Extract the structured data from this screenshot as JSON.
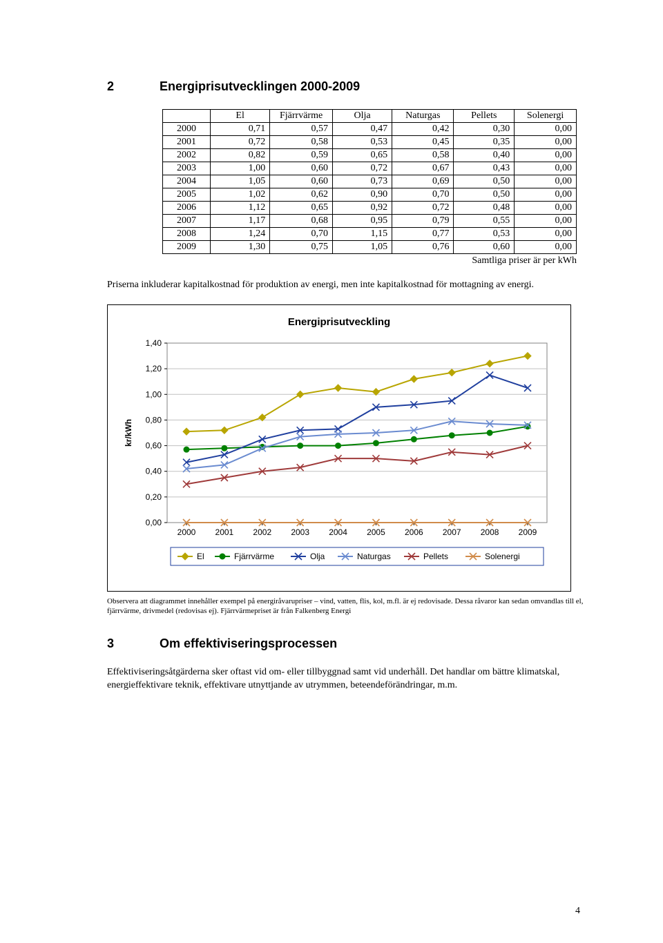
{
  "section2": {
    "num": "2",
    "title": "Energiprisutvecklingen 2000-2009"
  },
  "table": {
    "headers": [
      "",
      "El",
      "Fjärrvärme",
      "Olja",
      "Naturgas",
      "Pellets",
      "Solenergi"
    ],
    "rows": [
      [
        "2000",
        "0,71",
        "0,57",
        "0,47",
        "0,42",
        "0,30",
        "0,00"
      ],
      [
        "2001",
        "0,72",
        "0,58",
        "0,53",
        "0,45",
        "0,35",
        "0,00"
      ],
      [
        "2002",
        "0,82",
        "0,59",
        "0,65",
        "0,58",
        "0,40",
        "0,00"
      ],
      [
        "2003",
        "1,00",
        "0,60",
        "0,72",
        "0,67",
        "0,43",
        "0,00"
      ],
      [
        "2004",
        "1,05",
        "0,60",
        "0,73",
        "0,69",
        "0,50",
        "0,00"
      ],
      [
        "2005",
        "1,02",
        "0,62",
        "0,90",
        "0,70",
        "0,50",
        "0,00"
      ],
      [
        "2006",
        "1,12",
        "0,65",
        "0,92",
        "0,72",
        "0,48",
        "0,00"
      ],
      [
        "2007",
        "1,17",
        "0,68",
        "0,95",
        "0,79",
        "0,55",
        "0,00"
      ],
      [
        "2008",
        "1,24",
        "0,70",
        "1,15",
        "0,77",
        "0,53",
        "0,00"
      ],
      [
        "2009",
        "1,30",
        "0,75",
        "1,05",
        "0,76",
        "0,60",
        "0,00"
      ]
    ],
    "caption": "Samtliga priser är per kWh"
  },
  "para_after_table": "Priserna inkluderar kapitalkostnad för produktion av energi, men inte kapitalkostnad för mottagning av energi.",
  "chart": {
    "title": "Energiprisutveckling",
    "type": "line",
    "background_color": "#ffffff",
    "grid_color": "#c0c0c0",
    "plot_border_color": "#808080",
    "axis_font": "Arial",
    "axis_fontsize": 12,
    "ylabel": "kr/kWh",
    "ylabel_fontsize": 12,
    "ylim": [
      0.0,
      1.4
    ],
    "ytick_step": 0.2,
    "yticks_labels": [
      "0,00",
      "0,20",
      "0,40",
      "0,60",
      "0,80",
      "1,00",
      "1,20",
      "1,40"
    ],
    "categories": [
      "2000",
      "2001",
      "2002",
      "2003",
      "2004",
      "2005",
      "2006",
      "2007",
      "2008",
      "2009"
    ],
    "series": [
      {
        "name": "El",
        "color": "#b8a500",
        "marker": "diamond",
        "values": [
          0.71,
          0.72,
          0.82,
          1.0,
          1.05,
          1.02,
          1.12,
          1.17,
          1.24,
          1.3
        ]
      },
      {
        "name": "Fjärrvärme",
        "color": "#008000",
        "marker": "circle",
        "values": [
          0.57,
          0.58,
          0.59,
          0.6,
          0.6,
          0.62,
          0.65,
          0.68,
          0.7,
          0.75
        ]
      },
      {
        "name": "Olja",
        "color": "#1f3f9e",
        "marker": "x",
        "values": [
          0.47,
          0.53,
          0.65,
          0.72,
          0.73,
          0.9,
          0.92,
          0.95,
          1.15,
          1.05
        ]
      },
      {
        "name": "Naturgas",
        "color": "#6a8bd0",
        "marker": "x",
        "values": [
          0.42,
          0.45,
          0.58,
          0.67,
          0.69,
          0.7,
          0.72,
          0.79,
          0.77,
          0.76
        ]
      },
      {
        "name": "Pellets",
        "color": "#9f3a3a",
        "marker": "x",
        "values": [
          0.3,
          0.35,
          0.4,
          0.43,
          0.5,
          0.5,
          0.48,
          0.55,
          0.53,
          0.6
        ]
      },
      {
        "name": "Solenergi",
        "color": "#d08b4a",
        "marker": "x",
        "values": [
          0.0,
          0.0,
          0.0,
          0.0,
          0.0,
          0.0,
          0.0,
          0.0,
          0.0,
          0.0
        ]
      }
    ],
    "line_width": 2,
    "marker_size": 5,
    "legend_border_color": "#1f3f9e",
    "legend_fontsize": 12,
    "legend_font": "Arial"
  },
  "chart_footnote": "Observera att diagrammet innehåller exempel på energiråvarupriser – vind, vatten, flis, kol, m.fl. är ej redovisade. Dessa råvaror kan sedan omvandlas till el, fjärrvärme, drivmedel (redovisas ej). Fjärrvärmepriset är från Falkenberg Energi",
  "section3": {
    "num": "3",
    "title": "Om effektiviseringsprocessen"
  },
  "para_section3": "Effektiviseringsåtgärderna sker oftast vid om- eller tillbyggnad samt vid underhåll. Det handlar om bättre klimatskal, energieffektivare teknik, effektivare utnyttjande av utrymmen, beteendeförändringar, m.m.",
  "page_number": "4"
}
